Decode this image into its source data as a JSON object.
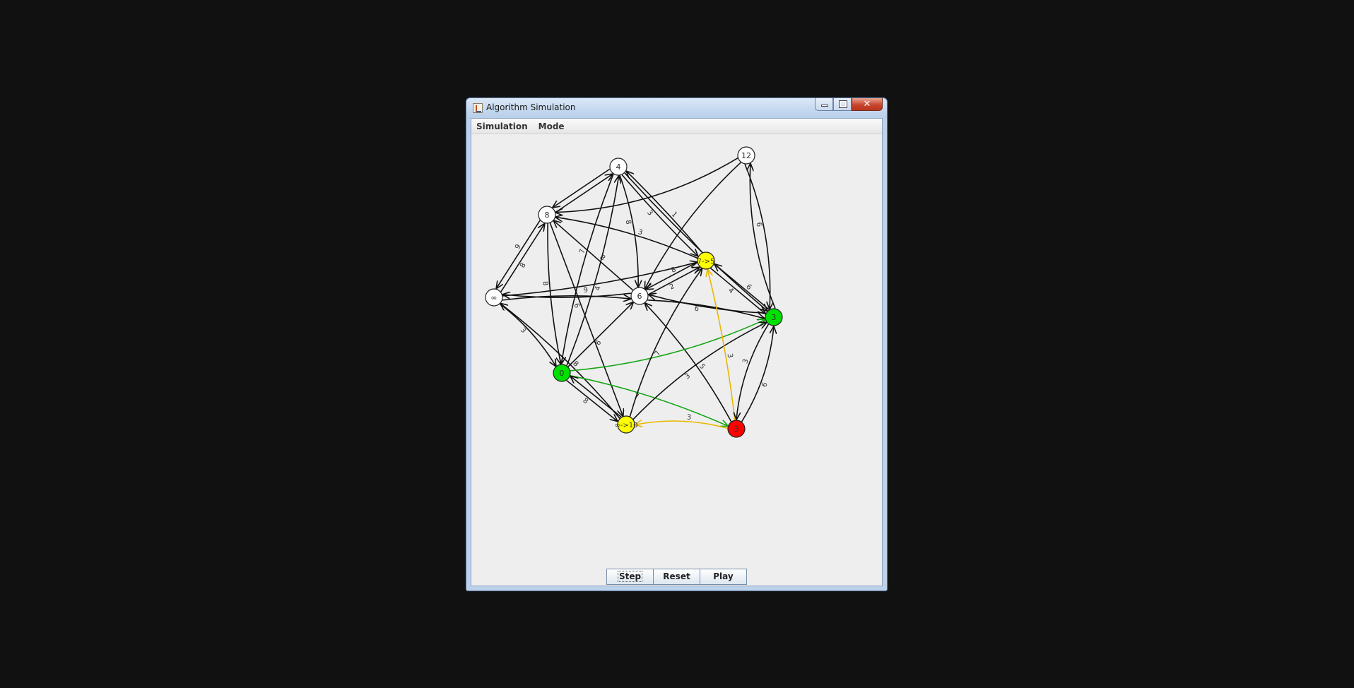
{
  "window": {
    "title": "Algorithm Simulation"
  },
  "menu": {
    "items": [
      "Simulation",
      "Mode"
    ]
  },
  "buttons": {
    "step": "Step",
    "reset": "Reset",
    "play": "Play"
  },
  "colors": {
    "visited": "#00e000",
    "frontier": "#ffff00",
    "current": "#ff0000",
    "unvisited": "#ffffff",
    "tree_edge": "#16a616",
    "frontier_edge": "#e8b800",
    "edge": "#111111"
  },
  "graph": {
    "nodes": [
      {
        "id": "n4",
        "label": "4",
        "state": "unvisited"
      },
      {
        "id": "n12",
        "label": "12",
        "state": "unvisited"
      },
      {
        "id": "n8",
        "label": "8",
        "state": "unvisited"
      },
      {
        "id": "n75",
        "label": "7->5",
        "state": "frontier"
      },
      {
        "id": "ninf",
        "label": "∞",
        "state": "unvisited"
      },
      {
        "id": "n6",
        "label": "6",
        "state": "unvisited"
      },
      {
        "id": "n3",
        "label": "3",
        "state": "visited"
      },
      {
        "id": "n0",
        "label": "0",
        "state": "visited"
      },
      {
        "id": "n10",
        "label": "∞->10",
        "state": "frontier"
      },
      {
        "id": "nr3",
        "label": "3",
        "state": "current"
      }
    ],
    "edges": [
      {
        "from": "n12",
        "to": "n8",
        "weight": "",
        "state": "normal"
      },
      {
        "from": "n12",
        "to": "n6",
        "weight": "",
        "state": "normal"
      },
      {
        "from": "n12",
        "to": "n3",
        "weight": "6",
        "state": "normal"
      },
      {
        "from": "n3",
        "to": "n12",
        "weight": "",
        "state": "normal"
      },
      {
        "from": "n4",
        "to": "n8",
        "weight": "",
        "state": "normal"
      },
      {
        "from": "n8",
        "to": "n4",
        "weight": "",
        "state": "normal"
      },
      {
        "from": "n4",
        "to": "n75",
        "weight": "3",
        "state": "normal"
      },
      {
        "from": "n75",
        "to": "n4",
        "weight": "1",
        "state": "normal"
      },
      {
        "from": "n4",
        "to": "n6",
        "weight": "8",
        "state": "normal"
      },
      {
        "from": "n4",
        "to": "n3",
        "weight": "",
        "state": "normal"
      },
      {
        "from": "n0",
        "to": "n4",
        "weight": "4",
        "state": "normal"
      },
      {
        "from": "n4",
        "to": "n0",
        "weight": "7",
        "state": "normal"
      },
      {
        "from": "n8",
        "to": "ninf",
        "weight": "9",
        "state": "normal"
      },
      {
        "from": "ninf",
        "to": "n8",
        "weight": "8",
        "state": "normal"
      },
      {
        "from": "n75",
        "to": "n8",
        "weight": "3",
        "state": "normal"
      },
      {
        "from": "n6",
        "to": "n8",
        "weight": "8",
        "state": "normal"
      },
      {
        "from": "n8",
        "to": "n0",
        "weight": "8",
        "state": "normal"
      },
      {
        "from": "n8",
        "to": "n10",
        "weight": "6",
        "state": "normal"
      },
      {
        "from": "ninf",
        "to": "n75",
        "weight": "9",
        "state": "normal"
      },
      {
        "from": "ninf",
        "to": "n6",
        "weight": "",
        "state": "normal"
      },
      {
        "from": "n6",
        "to": "ninf",
        "weight": "",
        "state": "normal"
      },
      {
        "from": "ninf",
        "to": "n0",
        "weight": "3",
        "state": "normal"
      },
      {
        "from": "n10",
        "to": "ninf",
        "weight": "8",
        "state": "normal"
      },
      {
        "from": "n75",
        "to": "n6",
        "weight": "8",
        "state": "normal"
      },
      {
        "from": "n6",
        "to": "n75",
        "weight": "2",
        "state": "normal"
      },
      {
        "from": "n75",
        "to": "n3",
        "weight": "4",
        "state": "normal"
      },
      {
        "from": "n3",
        "to": "n75",
        "weight": "6",
        "state": "normal"
      },
      {
        "from": "n6",
        "to": "n3",
        "weight": "6",
        "state": "normal"
      },
      {
        "from": "n3",
        "to": "n6",
        "weight": "",
        "state": "normal"
      },
      {
        "from": "n0",
        "to": "n6",
        "weight": "6",
        "state": "normal"
      },
      {
        "from": "nr3",
        "to": "n6",
        "weight": "5",
        "state": "normal"
      },
      {
        "from": "n0",
        "to": "n3",
        "weight": "",
        "state": "tree"
      },
      {
        "from": "n0",
        "to": "nr3",
        "weight": "7",
        "state": "tree"
      },
      {
        "from": "n0",
        "to": "n10",
        "weight": "8",
        "state": "normal"
      },
      {
        "from": "n10",
        "to": "n0",
        "weight": "",
        "state": "normal"
      },
      {
        "from": "n10",
        "to": "n75",
        "weight": "7",
        "state": "normal"
      },
      {
        "from": "n10",
        "to": "n3",
        "weight": "3",
        "state": "normal"
      },
      {
        "from": "nr3",
        "to": "n10",
        "weight": "3",
        "state": "frontier"
      },
      {
        "from": "nr3",
        "to": "n75",
        "weight": "3",
        "state": "frontier"
      },
      {
        "from": "nr3",
        "to": "n3",
        "weight": "6",
        "state": "normal"
      },
      {
        "from": "n3",
        "to": "nr3",
        "weight": "3",
        "state": "normal"
      }
    ]
  }
}
